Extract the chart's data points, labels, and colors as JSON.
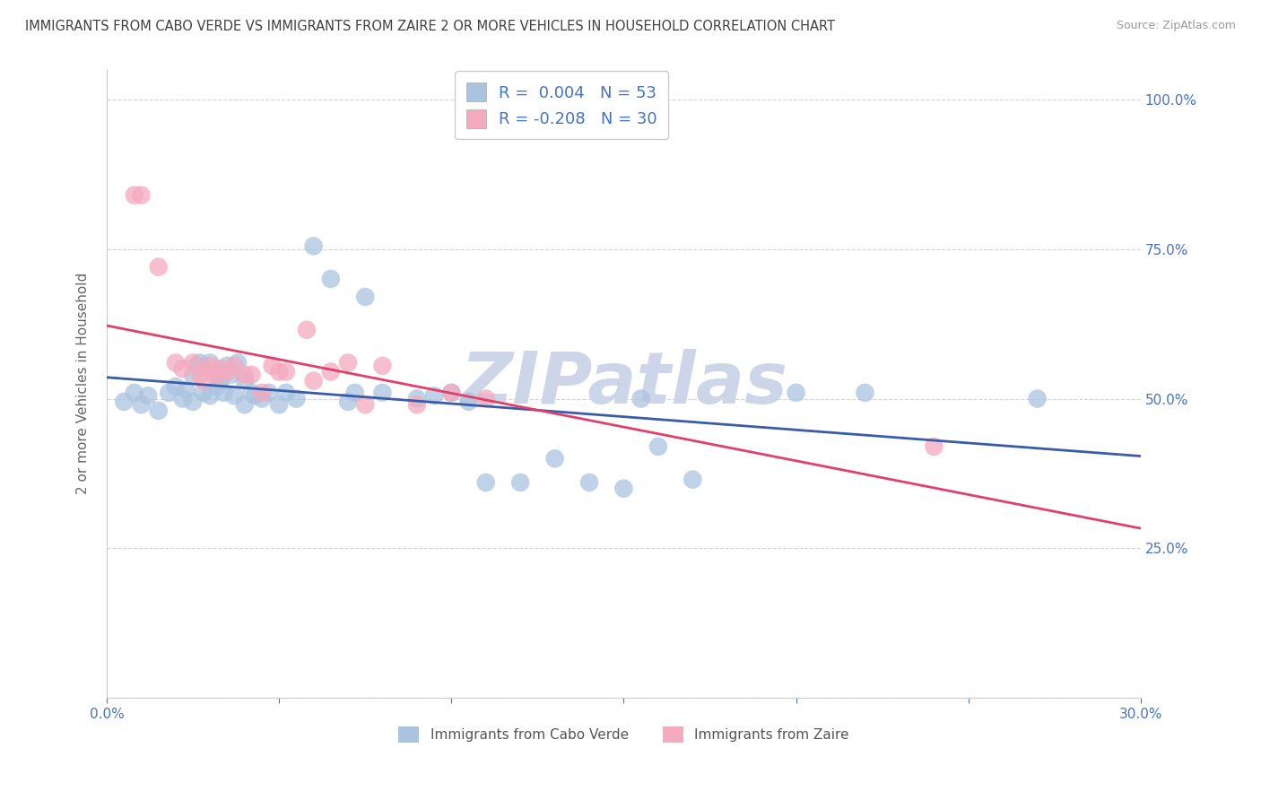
{
  "title": "IMMIGRANTS FROM CABO VERDE VS IMMIGRANTS FROM ZAIRE 2 OR MORE VEHICLES IN HOUSEHOLD CORRELATION CHART",
  "source": "Source: ZipAtlas.com",
  "ylabel": "2 or more Vehicles in Household",
  "xlim": [
    0.0,
    0.3
  ],
  "ylim": [
    0.0,
    1.05
  ],
  "ytick_positions": [
    0.0,
    0.25,
    0.5,
    0.75,
    1.0
  ],
  "ytick_labels": [
    "",
    "25.0%",
    "50.0%",
    "75.0%",
    "100.0%"
  ],
  "xtick_positions": [
    0.0,
    0.05,
    0.1,
    0.15,
    0.2,
    0.25,
    0.3
  ],
  "xtick_labels": [
    "0.0%",
    "",
    "",
    "",
    "",
    "",
    "30.0%"
  ],
  "cabo_verde_R": 0.004,
  "cabo_verde_N": 53,
  "zaire_R": -0.208,
  "zaire_N": 30,
  "cabo_verde_color": "#aac4e0",
  "zaire_color": "#f4aabf",
  "cabo_verde_line_color": "#3a5ca8",
  "zaire_line_color": "#e0406a",
  "legend_label_cabo_verde": "Immigrants from Cabo Verde",
  "legend_label_zaire": "Immigrants from Zaire",
  "background_color": "#ffffff",
  "grid_color": "#c8c8c8",
  "title_color": "#404040",
  "watermark_color": "#cdd6e8",
  "label_color": "#4472c4",
  "cabo_verde_x": [
    0.005,
    0.008,
    0.01,
    0.012,
    0.015,
    0.018,
    0.02,
    0.022,
    0.023,
    0.025,
    0.025,
    0.026,
    0.027,
    0.028,
    0.03,
    0.03,
    0.032,
    0.033,
    0.034,
    0.035,
    0.036,
    0.037,
    0.038,
    0.04,
    0.04,
    0.042,
    0.043,
    0.045,
    0.047,
    0.05,
    0.052,
    0.055,
    0.06,
    0.065,
    0.07,
    0.072,
    0.075,
    0.08,
    0.09,
    0.095,
    0.1,
    0.105,
    0.11,
    0.12,
    0.13,
    0.14,
    0.15,
    0.155,
    0.16,
    0.17,
    0.2,
    0.22,
    0.27
  ],
  "cabo_verde_y": [
    0.495,
    0.51,
    0.49,
    0.505,
    0.48,
    0.51,
    0.52,
    0.5,
    0.515,
    0.495,
    0.54,
    0.555,
    0.56,
    0.51,
    0.505,
    0.56,
    0.52,
    0.53,
    0.51,
    0.555,
    0.54,
    0.505,
    0.56,
    0.49,
    0.53,
    0.51,
    0.505,
    0.5,
    0.51,
    0.49,
    0.51,
    0.5,
    0.755,
    0.7,
    0.495,
    0.51,
    0.67,
    0.51,
    0.5,
    0.505,
    0.51,
    0.495,
    0.36,
    0.36,
    0.4,
    0.36,
    0.35,
    0.5,
    0.42,
    0.365,
    0.51,
    0.51,
    0.5
  ],
  "zaire_x": [
    0.008,
    0.01,
    0.015,
    0.02,
    0.022,
    0.025,
    0.027,
    0.028,
    0.03,
    0.03,
    0.032,
    0.033,
    0.035,
    0.037,
    0.04,
    0.042,
    0.045,
    0.048,
    0.05,
    0.052,
    0.058,
    0.06,
    0.065,
    0.07,
    0.075,
    0.08,
    0.09,
    0.1,
    0.11,
    0.24
  ],
  "zaire_y": [
    0.84,
    0.84,
    0.72,
    0.56,
    0.55,
    0.56,
    0.54,
    0.53,
    0.545,
    0.555,
    0.54,
    0.55,
    0.545,
    0.555,
    0.54,
    0.54,
    0.51,
    0.555,
    0.545,
    0.545,
    0.615,
    0.53,
    0.545,
    0.56,
    0.49,
    0.555,
    0.49,
    0.51,
    0.5,
    0.42
  ]
}
